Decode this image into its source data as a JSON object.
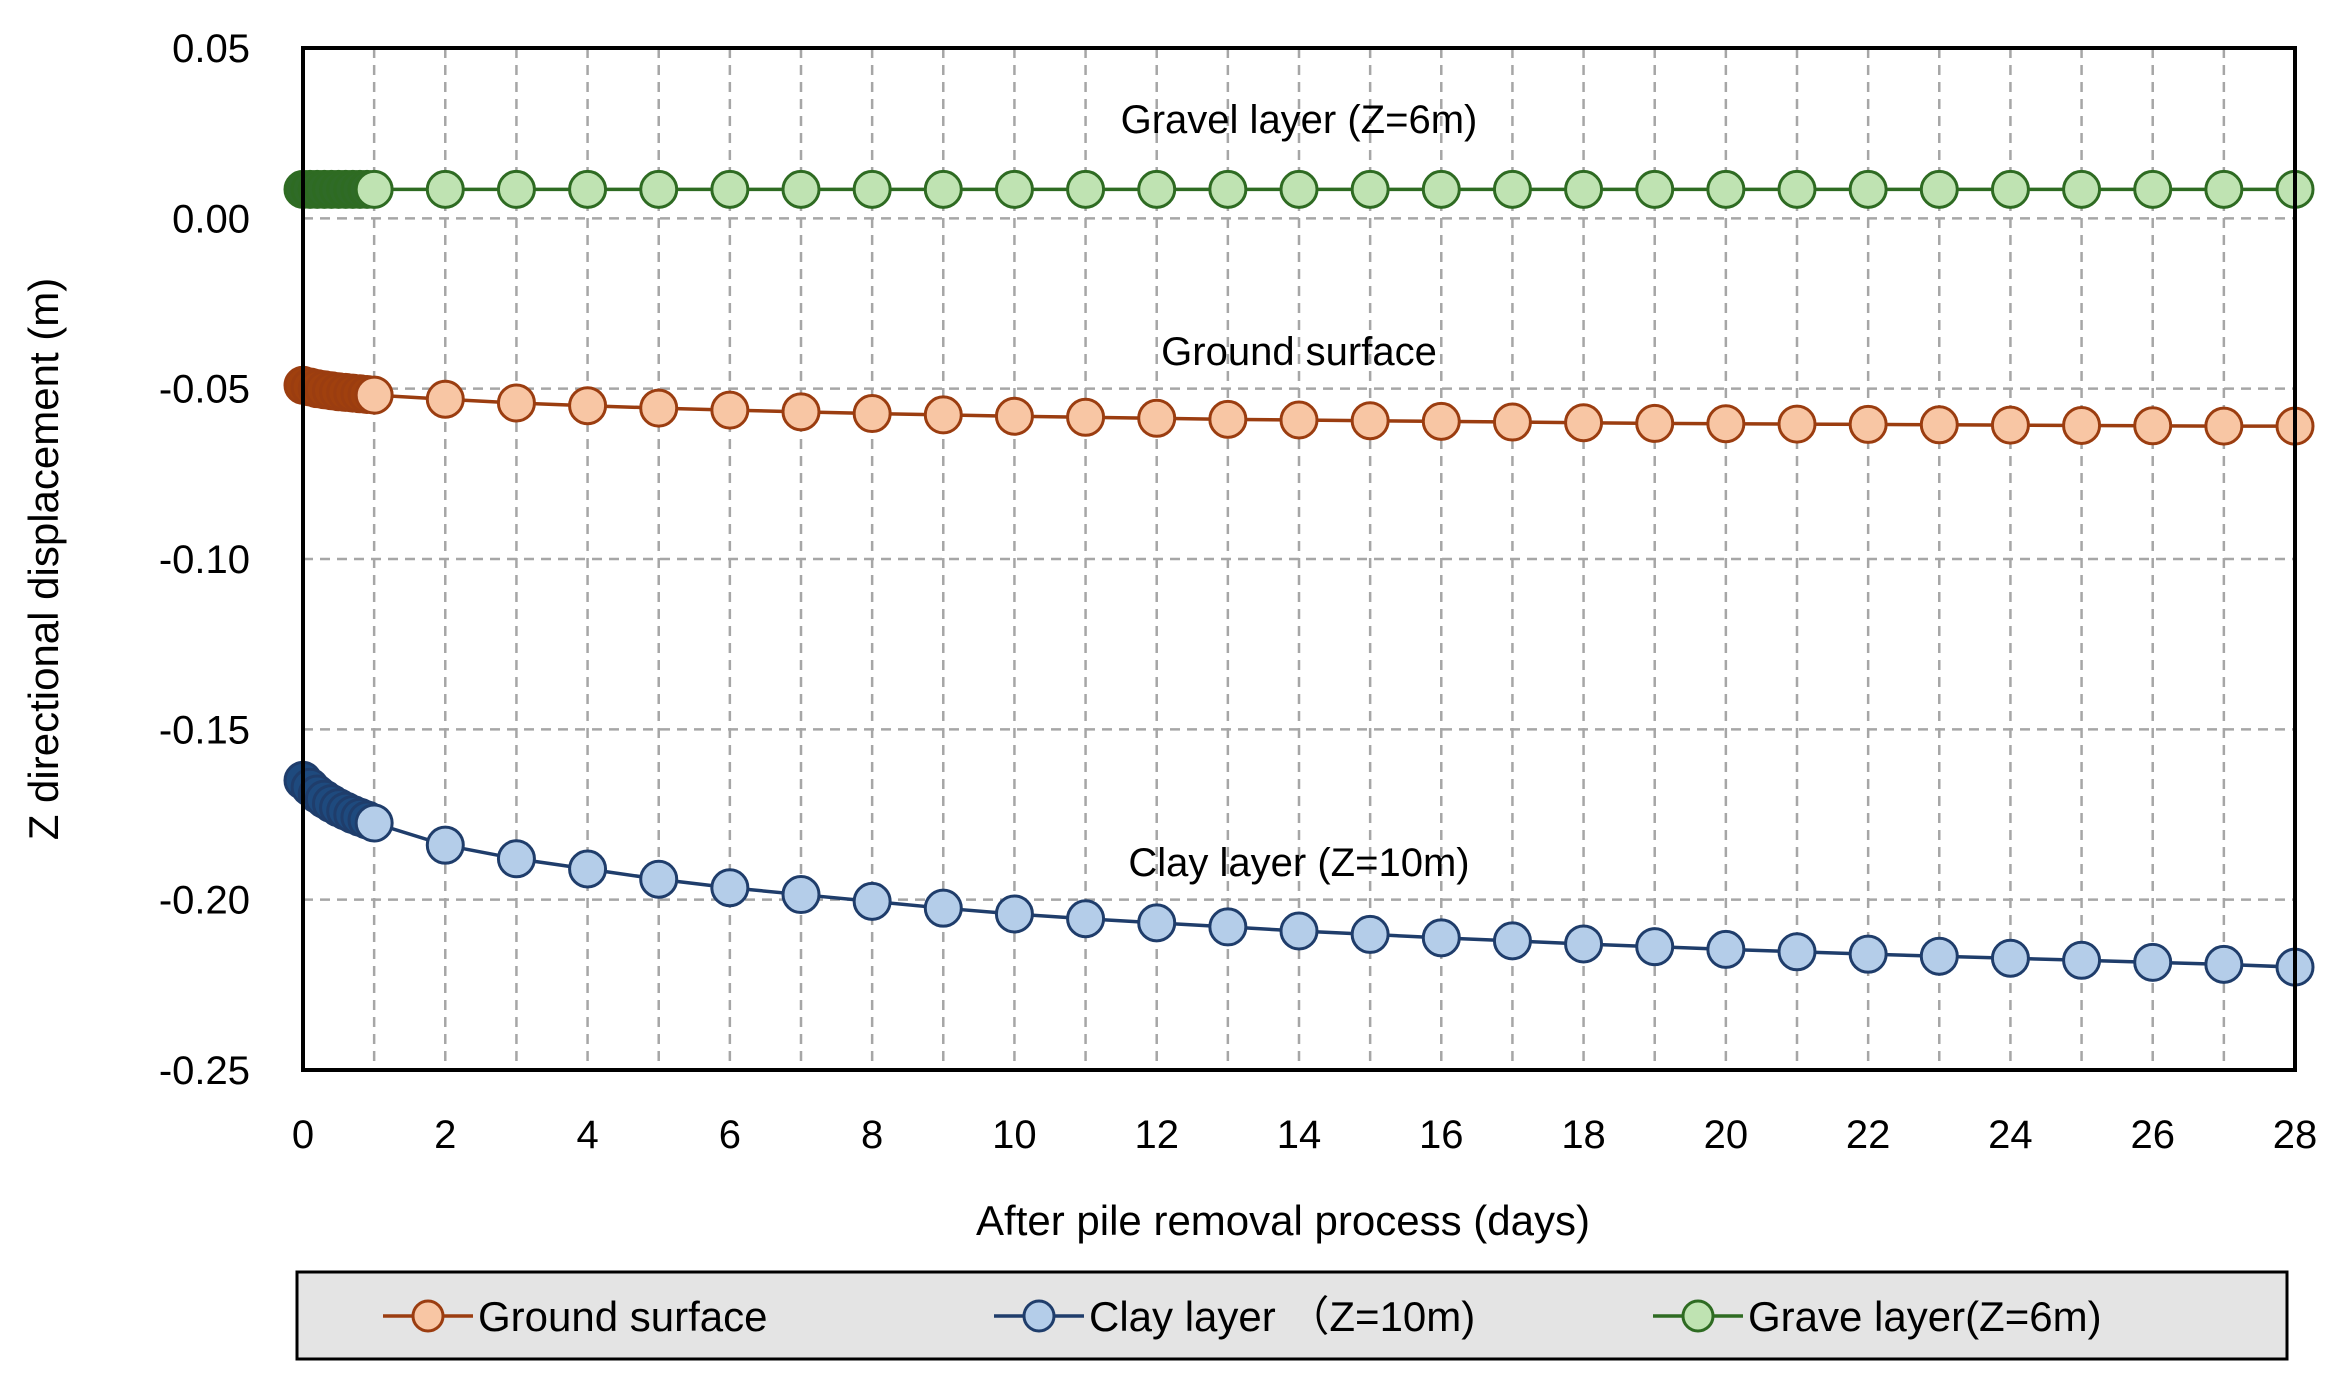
{
  "chart_data": {
    "type": "line",
    "xlabel": "After pile removal process (days)",
    "ylabel": "Z directional displacement (m)",
    "xlim": [
      0,
      28
    ],
    "ylim": [
      -0.25,
      0.05
    ],
    "x_ticks": [
      "0",
      "2",
      "4",
      "6",
      "8",
      "10",
      "12",
      "14",
      "16",
      "18",
      "20",
      "22",
      "24",
      "26",
      "28"
    ],
    "y_ticks": [
      "0.05",
      "0.00",
      "-0.05",
      "-0.10",
      "-0.15",
      "-0.20",
      "-0.25"
    ],
    "grid": true,
    "legend_position": "bottom",
    "x": [
      0,
      0.1,
      0.2,
      0.3,
      0.4,
      0.5,
      0.6,
      0.7,
      0.8,
      0.9,
      1,
      2,
      3,
      4,
      5,
      6,
      7,
      8,
      9,
      10,
      11,
      12,
      13,
      14,
      15,
      16,
      17,
      18,
      19,
      20,
      21,
      22,
      23,
      24,
      25,
      26,
      27,
      28
    ],
    "series": [
      {
        "name": "Ground surface",
        "line_color": "#9b3d10",
        "fill_color": "#f8c6a4",
        "dense_color": "#a0400e",
        "values": [
          -0.049,
          -0.0495,
          -0.05,
          -0.0503,
          -0.0506,
          -0.0509,
          -0.0511,
          -0.0513,
          -0.0515,
          -0.0517,
          -0.0519,
          -0.0531,
          -0.0542,
          -0.055,
          -0.0557,
          -0.0563,
          -0.0568,
          -0.0573,
          -0.0577,
          -0.0581,
          -0.0584,
          -0.0587,
          -0.059,
          -0.0592,
          -0.0594,
          -0.0596,
          -0.0598,
          -0.06,
          -0.0602,
          -0.0603,
          -0.0604,
          -0.0605,
          -0.0606,
          -0.0607,
          -0.0608,
          -0.0609,
          -0.061,
          -0.061
        ]
      },
      {
        "name": "Clay layer （Z=10m)",
        "line_color": "#1f3d6b",
        "fill_color": "#b4cde9",
        "dense_color": "#1e4a7e",
        "values": [
          -0.165,
          -0.167,
          -0.169,
          -0.1705,
          -0.1718,
          -0.173,
          -0.174,
          -0.175,
          -0.1758,
          -0.1766,
          -0.1775,
          -0.184,
          -0.188,
          -0.191,
          -0.194,
          -0.1965,
          -0.1985,
          -0.2005,
          -0.2025,
          -0.2042,
          -0.2056,
          -0.2068,
          -0.208,
          -0.2092,
          -0.2102,
          -0.2112,
          -0.2121,
          -0.213,
          -0.2138,
          -0.2146,
          -0.2153,
          -0.216,
          -0.2166,
          -0.2172,
          -0.2178,
          -0.2184,
          -0.219,
          -0.2198
        ]
      },
      {
        "name": "Grave layer(Z=6m)",
        "line_color": "#2e6b22",
        "fill_color": "#bfe3b2",
        "dense_color": "#2f6b27",
        "values": [
          0.0085,
          0.0085,
          0.0085,
          0.0085,
          0.0085,
          0.0085,
          0.0085,
          0.0085,
          0.0085,
          0.0085,
          0.0085,
          0.0085,
          0.0085,
          0.0085,
          0.0085,
          0.0085,
          0.0085,
          0.0085,
          0.0085,
          0.0085,
          0.0085,
          0.0085,
          0.0085,
          0.0085,
          0.0085,
          0.0085,
          0.0085,
          0.0085,
          0.0085,
          0.0085,
          0.0085,
          0.0085,
          0.0085,
          0.0085,
          0.0085,
          0.0085,
          0.0085,
          0.0085
        ]
      }
    ],
    "annotations": [
      {
        "text": "Gravel layer (Z=6m)",
        "x": 14,
        "y": 0.025
      },
      {
        "text": "Ground surface",
        "x": 14,
        "y": -0.043
      },
      {
        "text": "Clay layer (Z=10m)",
        "x": 14,
        "y": -0.193
      }
    ]
  }
}
